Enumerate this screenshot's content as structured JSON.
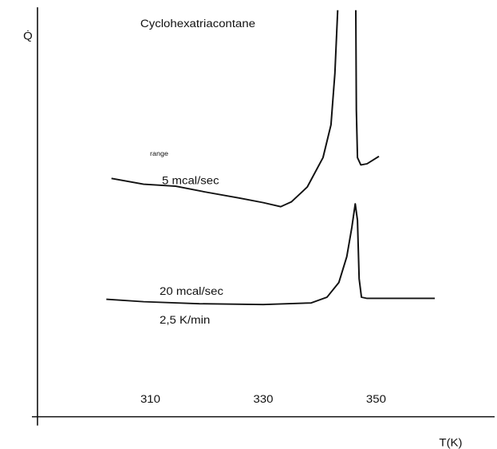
{
  "chart_data": {
    "type": "line",
    "title": "Cyclohexatriacontane",
    "y_label": "Q̇",
    "x_label": "T(K)",
    "annotations": [
      "range",
      "5 mcal/sec",
      "20 mcal/sec",
      "2,5 K/min"
    ],
    "xlim": [
      290,
      371
    ],
    "xticks": [
      310,
      330,
      350
    ],
    "ylim": [
      0,
      100
    ],
    "series": [
      {
        "color": "#111111",
        "x": [
          303.1,
          308.8,
          314.5,
          320.1,
          325.8,
          330.0,
          333.1,
          335.0,
          337.8,
          340.6,
          342.0,
          342.7,
          343.2,
          null,
          346.4,
          346.5,
          346.7,
          347.3,
          348.4,
          350.5
        ],
        "values": [
          58.2,
          56.8,
          56.3,
          54.8,
          53.4,
          52.3,
          51.3,
          52.5,
          56.1,
          63.3,
          71.3,
          83.9,
          99.3,
          null,
          99.3,
          74.9,
          63.3,
          61.5,
          61.8,
          63.6
        ]
      },
      {
        "color": "#111111",
        "x": [
          302.2,
          308.8,
          318.7,
          330.0,
          338.5,
          341.3,
          343.4,
          344.8,
          345.7,
          346.3,
          346.7,
          347.0,
          347.4,
          348.4,
          354.0,
          360.4
        ],
        "values": [
          28.7,
          28.1,
          27.6,
          27.4,
          27.8,
          29.2,
          32.8,
          39.1,
          46.2,
          52.0,
          48.0,
          33.7,
          29.2,
          28.9,
          28.9,
          28.9
        ]
      }
    ]
  }
}
